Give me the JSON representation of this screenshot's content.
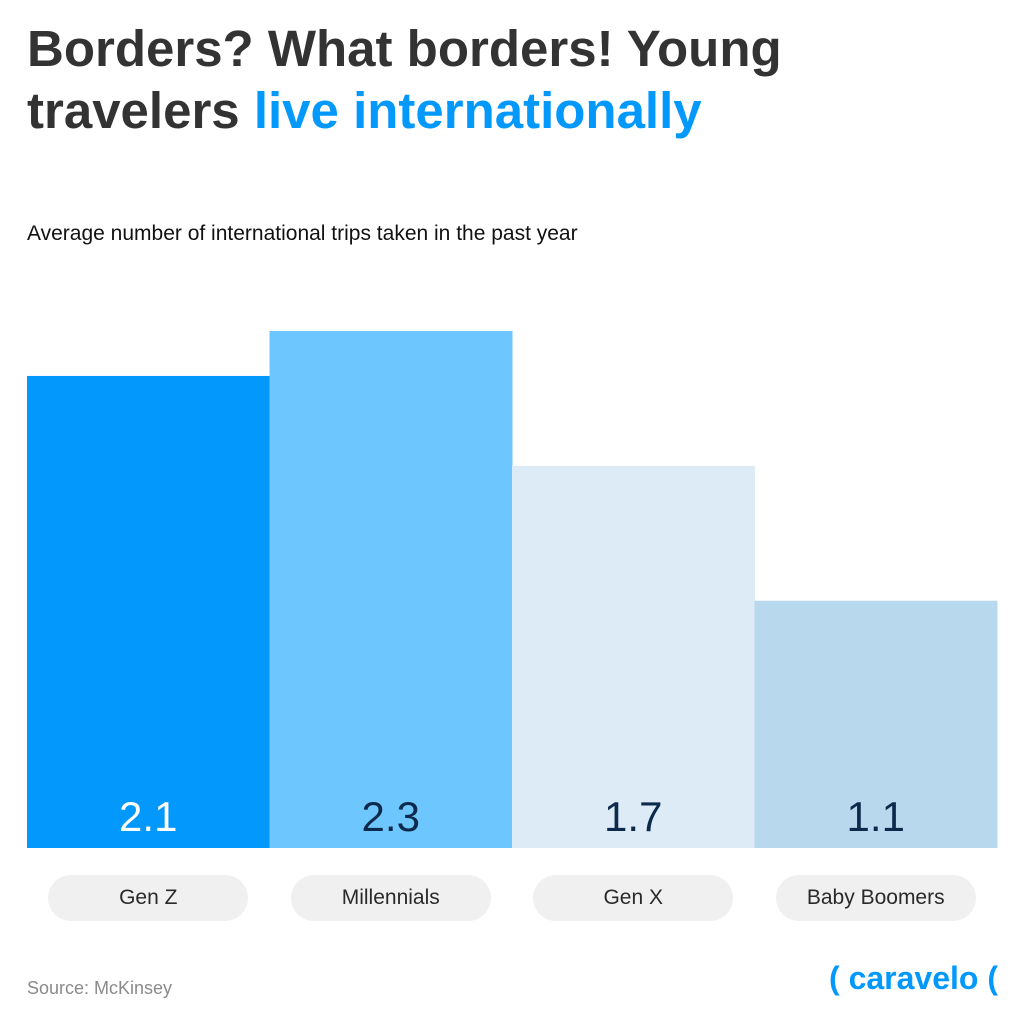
{
  "title": {
    "part1": "Borders? What borders! Young travelers ",
    "highlight": "live internationally"
  },
  "chart_data": {
    "type": "bar",
    "title": "Borders? What borders! Young travelers live internationally",
    "subtitle": "Average number of international trips taken in the past year",
    "categories": [
      "Gen Z",
      "Millennials",
      "Gen X",
      "Baby Boomers"
    ],
    "values": [
      2.1,
      2.3,
      1.7,
      1.1
    ],
    "value_labels": [
      "2.1",
      "2.3",
      "1.7",
      "1.1"
    ],
    "colors": [
      "#0399fc",
      "#6ec6fe",
      "#dcebf6",
      "#b8d8ee"
    ],
    "label_colors": [
      "#ffffff",
      "#0d2a4d",
      "#0d2a4d",
      "#0d2a4d"
    ],
    "xlabel": "",
    "ylabel": "",
    "ylim": [
      0,
      2.3
    ],
    "grid": false
  },
  "source": "Source: McKinsey",
  "brand": "( caravelo ("
}
